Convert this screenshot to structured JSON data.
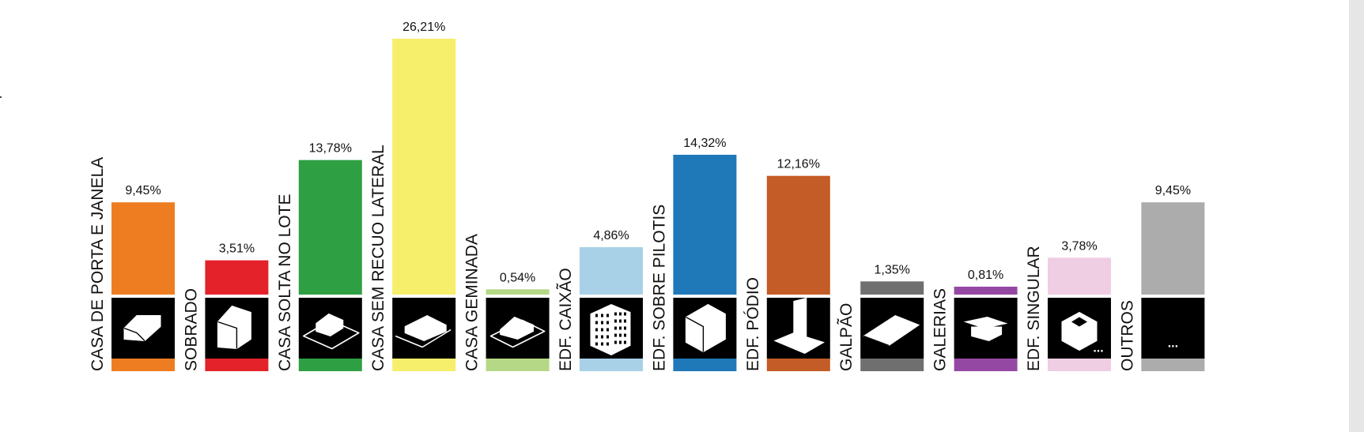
{
  "chart_data": {
    "type": "bar",
    "categories": [
      "CASA DE PORTA E JANELA",
      "SOBRADO",
      "CASA SOLTA NO LOTE",
      "CASA SEM RECUO LATERAL",
      "CASA GEMINADA",
      "EDF. CAIXÃO",
      "EDF. SOBRE PILOTIS",
      "EDF. PÓDIO",
      "GALPÃO",
      "GALERIAS",
      "EDF. SINGULAR",
      "OUTROS"
    ],
    "values": [
      9.45,
      3.51,
      13.78,
      26.21,
      0.54,
      4.86,
      14.32,
      12.16,
      1.35,
      0.81,
      3.78,
      9.45
    ],
    "value_labels": [
      "9,45%",
      "3,51%",
      "13,78%",
      "26,21%",
      "0,54%",
      "4,86%",
      "14,32%",
      "12,16%",
      "1,35%",
      "0,81%",
      "3,78%",
      "9,45%"
    ],
    "colors": [
      "#ee7d22",
      "#e42229",
      "#2ea043",
      "#f5ef6b",
      "#b5d886",
      "#a8d1e8",
      "#1f78b8",
      "#c35c27",
      "#6f6f6f",
      "#9548a3",
      "#efcde2",
      "#acacac"
    ],
    "icons": [
      "house-with-door-and-window-icon",
      "two-storey-house-icon",
      "detached-house-icon",
      "house-without-side-setback-icon",
      "semi-detached-house-icon",
      "box-building-icon",
      "building-on-pilotis-icon",
      "podium-building-icon",
      "shed-icon",
      "gallery-icon",
      "singular-building-icon",
      "others-ellipsis-icon"
    ],
    "ellipsis_text": "...",
    "ylim": [
      0,
      26.21
    ],
    "title": "",
    "xlabel": "",
    "ylabel": "",
    "legend": "none",
    "grid": false
  }
}
